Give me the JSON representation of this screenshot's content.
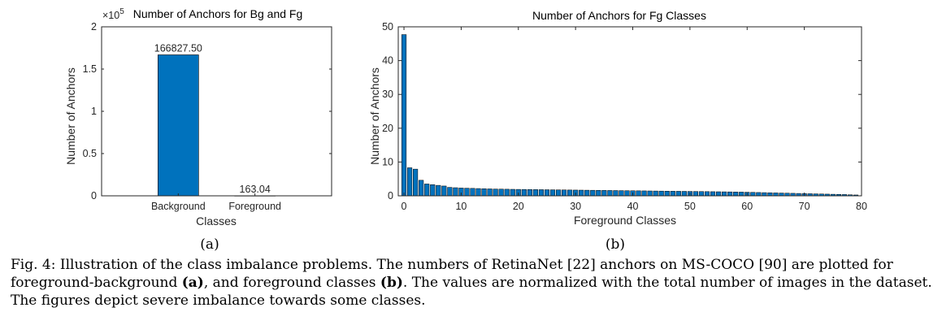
{
  "colors": {
    "bar": "#0072bd",
    "axis": "#262626",
    "text": "#262626"
  },
  "chart_data": [
    {
      "type": "bar",
      "title": "Number of Anchors for Bg and Fg",
      "xlabel": "Classes",
      "ylabel": "Number of Anchors",
      "categories": [
        "Background",
        "Foreground"
      ],
      "values": [
        166827.5,
        163.04
      ],
      "data_labels": [
        "166827.50",
        "163.04"
      ],
      "ylim": [
        0,
        200000
      ],
      "exponent_label": "×10",
      "exponent_power": "5",
      "yticks": [
        0,
        50000,
        100000,
        150000,
        200000
      ],
      "ytick_labels": [
        "0",
        "0.5",
        "1",
        "1.5",
        "2"
      ],
      "grid": false,
      "sub_label": "(a)"
    },
    {
      "type": "bar",
      "title": "Number of Anchors for Fg Classes",
      "xlabel": "Foreground Classes",
      "ylabel": "Number of Anchors",
      "x": [
        0,
        1,
        2,
        3,
        4,
        5,
        6,
        7,
        8,
        9,
        10,
        11,
        12,
        13,
        14,
        15,
        16,
        17,
        18,
        19,
        20,
        21,
        22,
        23,
        24,
        25,
        26,
        27,
        28,
        29,
        30,
        31,
        32,
        33,
        34,
        35,
        36,
        37,
        38,
        39,
        40,
        41,
        42,
        43,
        44,
        45,
        46,
        47,
        48,
        49,
        50,
        51,
        52,
        53,
        54,
        55,
        56,
        57,
        58,
        59,
        60,
        61,
        62,
        63,
        64,
        65,
        66,
        67,
        68,
        69,
        70,
        71,
        72,
        73,
        74,
        75,
        76,
        77,
        78,
        79
      ],
      "values": [
        47.7,
        8.3,
        7.9,
        4.6,
        3.5,
        3.3,
        3.1,
        2.9,
        2.5,
        2.4,
        2.3,
        2.25,
        2.2,
        2.15,
        2.1,
        2.05,
        2.0,
        1.98,
        1.95,
        1.92,
        1.9,
        1.88,
        1.86,
        1.84,
        1.82,
        1.8,
        1.78,
        1.76,
        1.74,
        1.72,
        1.7,
        1.68,
        1.66,
        1.64,
        1.62,
        1.6,
        1.58,
        1.56,
        1.54,
        1.52,
        1.5,
        1.48,
        1.46,
        1.44,
        1.42,
        1.4,
        1.38,
        1.36,
        1.34,
        1.32,
        1.3,
        1.28,
        1.26,
        1.24,
        1.22,
        1.2,
        1.18,
        1.16,
        1.13,
        1.1,
        1.06,
        1.02,
        0.98,
        0.94,
        0.9,
        0.86,
        0.82,
        0.78,
        0.74,
        0.7,
        0.66,
        0.62,
        0.58,
        0.54,
        0.5,
        0.46,
        0.42,
        0.38,
        0.3,
        0.25
      ],
      "xlim": [
        -1,
        80
      ],
      "ylim": [
        0,
        50
      ],
      "xticks": [
        0,
        10,
        20,
        30,
        40,
        50,
        60,
        70,
        80
      ],
      "xtick_labels": [
        "0",
        "10",
        "20",
        "30",
        "40",
        "50",
        "60",
        "70",
        "80"
      ],
      "yticks": [
        0,
        10,
        20,
        30,
        40,
        50
      ],
      "ytick_labels": [
        "0",
        "10",
        "20",
        "30",
        "40",
        "50"
      ],
      "grid": false,
      "sub_label": "(b)"
    }
  ],
  "caption": {
    "part1": "Fig. 4: Illustration of the class imbalance problems. The numbers of RetinaNet [22] anchors on MS-COCO [90] are plotted for foreground-background ",
    "bold_a": "(a)",
    "part2": ", and foreground classes ",
    "bold_b": "(b)",
    "part3": ". The values are normalized with the total number of images in the dataset. The figures depict severe imbalance towards some classes."
  }
}
